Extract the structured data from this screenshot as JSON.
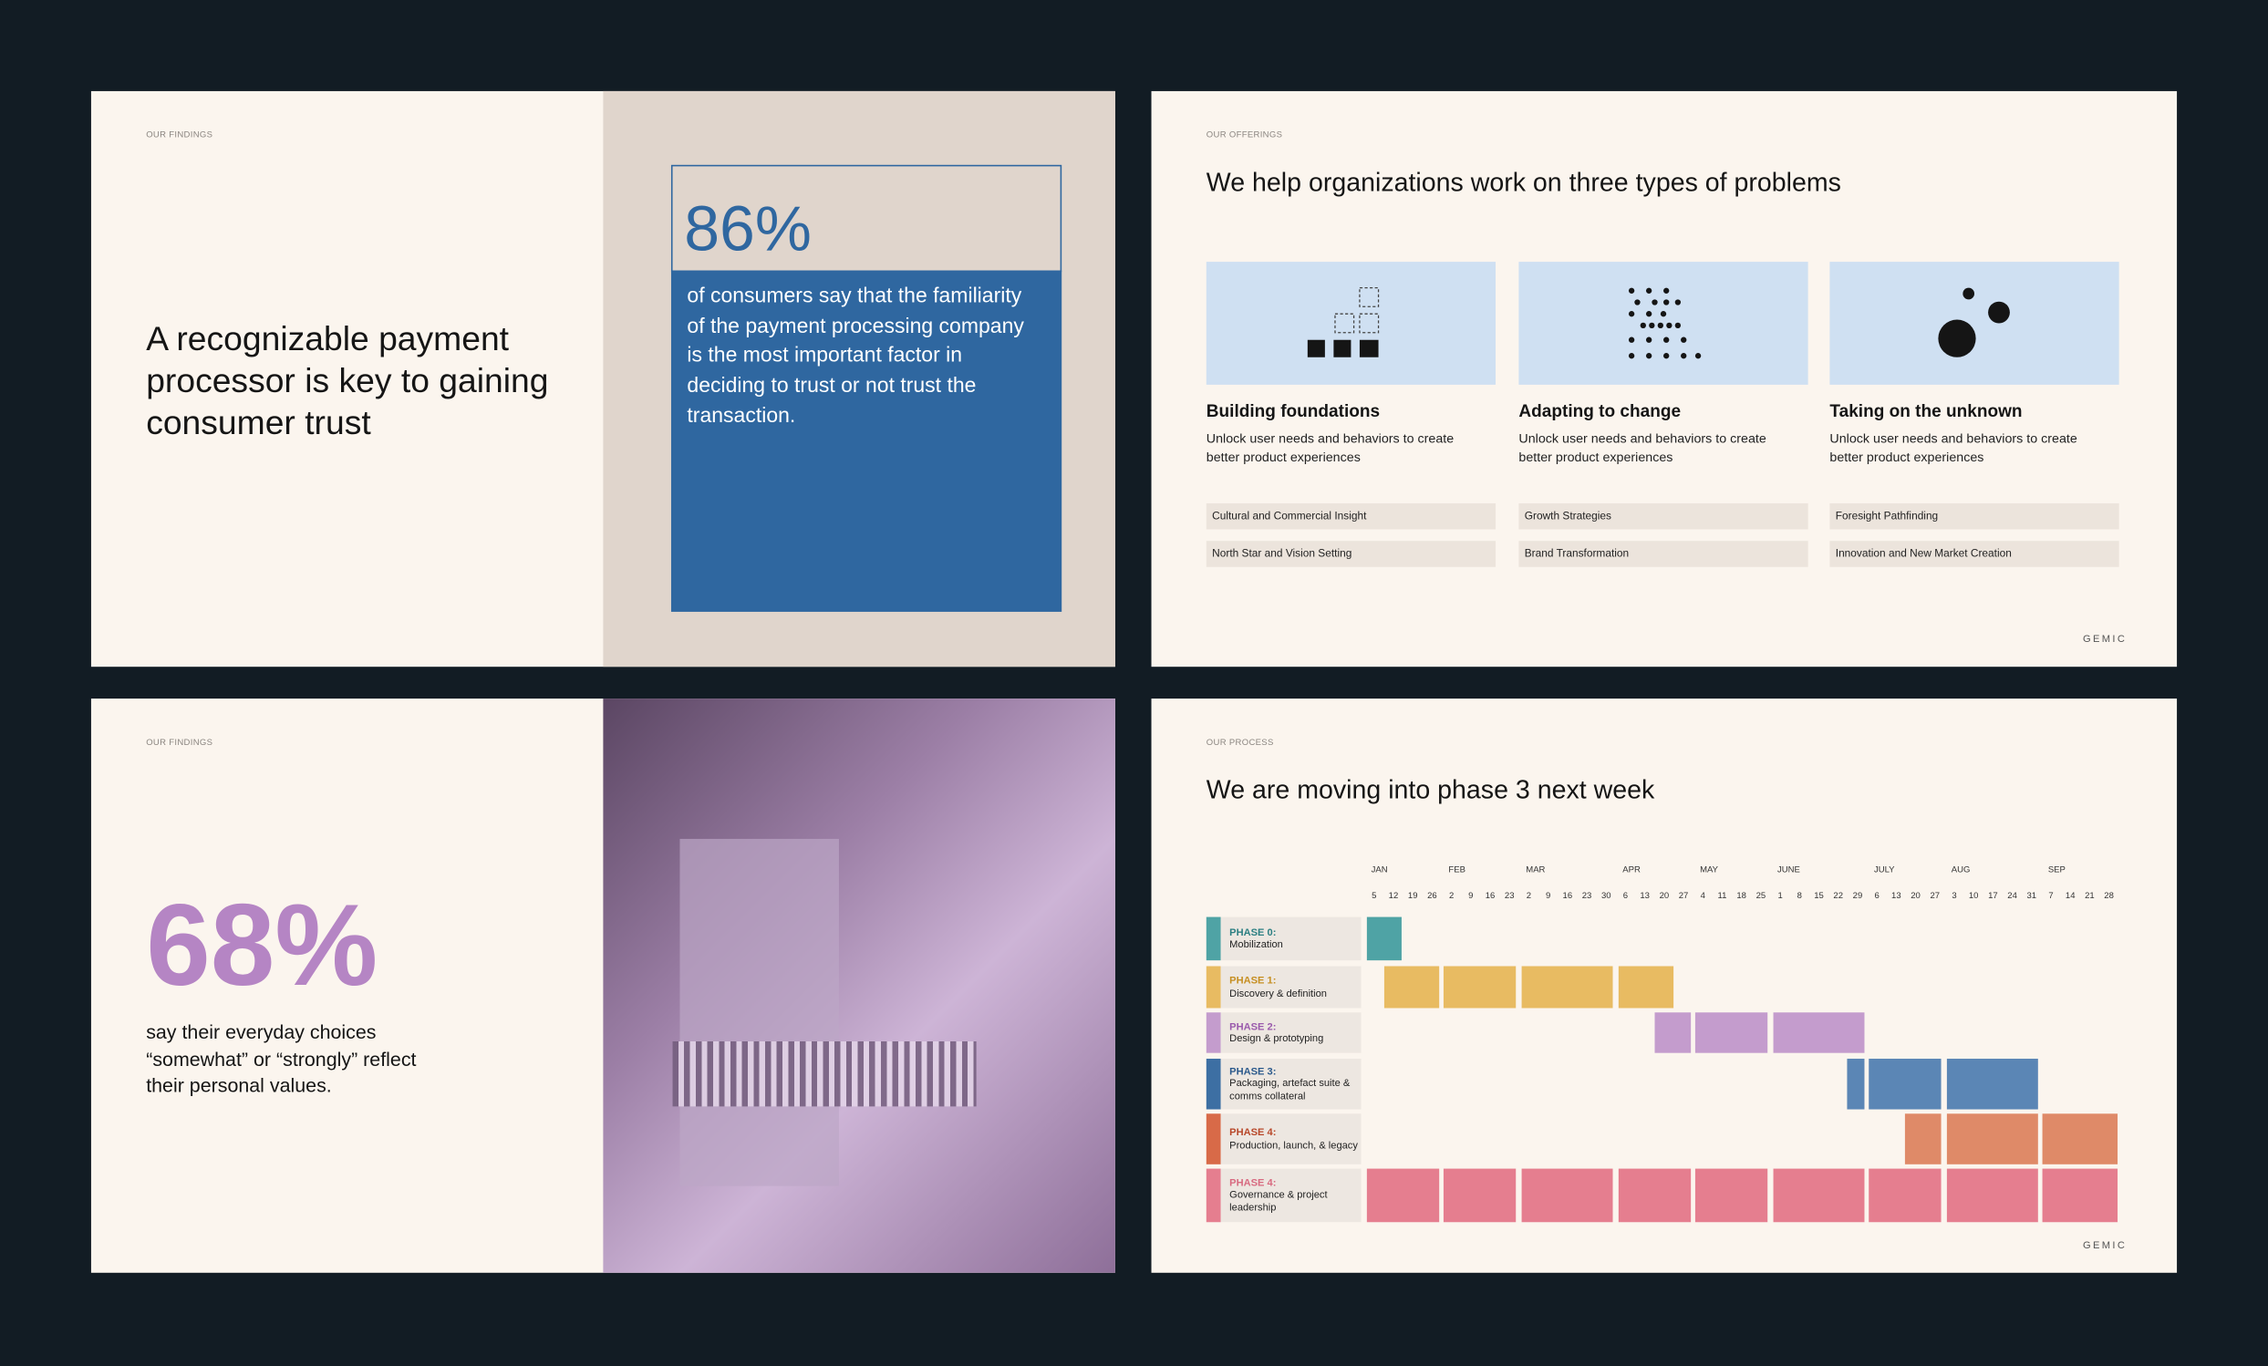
{
  "findings_a": {
    "kicker": "OUR FINDINGS",
    "headline": "A recognizable payment processor is key to gaining consumer trust",
    "stat": "86%",
    "stat_text": "of consumers say that the familiarity of the payment processing company is the most important factor in deciding to trust or not trust the transaction."
  },
  "offerings": {
    "kicker": "OUR OFFERINGS",
    "title": "We help organizations work on three types of problems",
    "cards": [
      {
        "title": "Building foundations",
        "description": "Unlock user needs and behaviors to create better product experiences",
        "tags": [
          "Cultural and Commercial Insight",
          "North Star and Vision Setting"
        ]
      },
      {
        "title": "Adapting to change",
        "description": "Unlock user needs and behaviors to create better product experiences",
        "tags": [
          "Growth Strategies",
          "Brand Transformation"
        ]
      },
      {
        "title": "Taking on the unknown",
        "description": "Unlock user needs and behaviors to create better product experiences",
        "tags": [
          "Foresight Pathfinding",
          "Innovation and New Market Creation"
        ]
      }
    ],
    "logo": "GEMIC"
  },
  "findings_b": {
    "kicker": "OUR FINDINGS",
    "stat": "68%",
    "stat_text": "say their everyday choices “somewhat” or “strongly” reflect their personal values."
  },
  "process": {
    "kicker": "OUR PROCESS",
    "title": "We are moving into phase 3 next week",
    "months": [
      {
        "name": "JAN",
        "weeks": [
          "5",
          "12",
          "19",
          "26"
        ]
      },
      {
        "name": "FEB",
        "weeks": [
          "2",
          "9",
          "16",
          "23"
        ]
      },
      {
        "name": "MAR",
        "weeks": [
          "2",
          "9",
          "16",
          "23",
          "30"
        ]
      },
      {
        "name": "APR",
        "weeks": [
          "6",
          "13",
          "20",
          "27"
        ]
      },
      {
        "name": "MAY",
        "weeks": [
          "4",
          "11",
          "18",
          "25"
        ]
      },
      {
        "name": "JUNE",
        "weeks": [
          "1",
          "8",
          "15",
          "22",
          "29"
        ]
      },
      {
        "name": "JULY",
        "weeks": [
          "6",
          "13",
          "20",
          "27"
        ]
      },
      {
        "name": "AUG",
        "weeks": [
          "3",
          "10",
          "17",
          "24",
          "31"
        ]
      },
      {
        "name": "SEP",
        "weeks": [
          "7",
          "14",
          "21",
          "28"
        ]
      }
    ],
    "phases": [
      {
        "phase": "PHASE 0:",
        "name": "Mobilization"
      },
      {
        "phase": "PHASE 1:",
        "name": "Discovery & definition"
      },
      {
        "phase": "PHASE 2:",
        "name": "Design & prototyping"
      },
      {
        "phase": "PHASE 3:",
        "name": "Packaging, artefact suite & comms collateral"
      },
      {
        "phase": "PHASE 4:",
        "name": "Production, launch, & legacy"
      },
      {
        "phase": "PHASE 4:",
        "name": "Governance & project leadership"
      }
    ],
    "logo": "GEMIC"
  }
}
